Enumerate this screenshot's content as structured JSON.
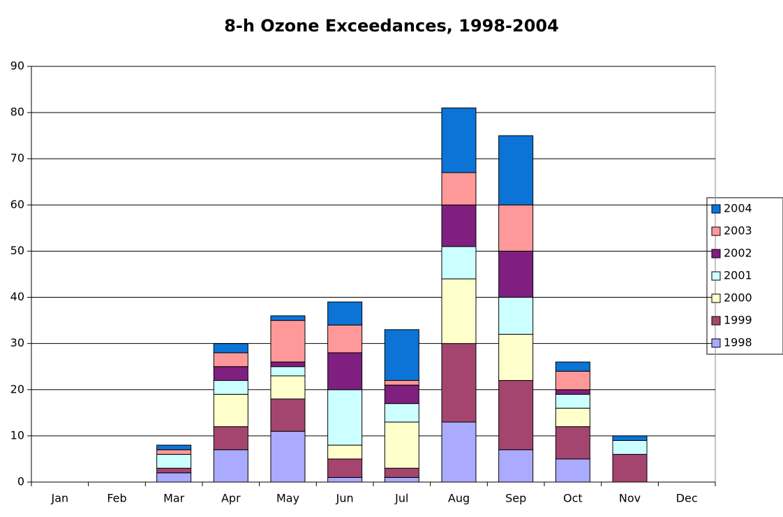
{
  "chart_data": {
    "type": "stacked_bar",
    "title": "8-h Ozone Exceedances, 1998-2004",
    "categories": [
      "Jan",
      "Feb",
      "Mar",
      "Apr",
      "May",
      "Jun",
      "Jul",
      "Aug",
      "Sep",
      "Oct",
      "Nov",
      "Dec"
    ],
    "series": [
      {
        "name": "1998",
        "color": "#aaaaff",
        "values": [
          0,
          0,
          2,
          7,
          11,
          1,
          1,
          13,
          7,
          5,
          0,
          0
        ]
      },
      {
        "name": "1999",
        "color": "#a4456f",
        "values": [
          0,
          0,
          1,
          5,
          7,
          4,
          2,
          17,
          15,
          7,
          6,
          0
        ]
      },
      {
        "name": "2000",
        "color": "#ffffcc",
        "values": [
          0,
          0,
          0,
          7,
          5,
          3,
          10,
          14,
          10,
          4,
          0,
          0
        ]
      },
      {
        "name": "2001",
        "color": "#ccffff",
        "values": [
          0,
          0,
          3,
          3,
          2,
          12,
          4,
          7,
          8,
          3,
          3,
          0
        ]
      },
      {
        "name": "2002",
        "color": "#7f1f7f",
        "values": [
          0,
          0,
          0,
          3,
          1,
          8,
          4,
          9,
          10,
          1,
          0,
          0
        ]
      },
      {
        "name": "2003",
        "color": "#ff9999",
        "values": [
          0,
          0,
          1,
          3,
          9,
          6,
          1,
          7,
          10,
          4,
          0,
          0
        ]
      },
      {
        "name": "2004",
        "color": "#0b74d6",
        "values": [
          0,
          0,
          1,
          2,
          1,
          5,
          11,
          14,
          15,
          2,
          1,
          0
        ]
      }
    ],
    "ylim": [
      0,
      90
    ],
    "yticks": [
      0,
      10,
      20,
      30,
      40,
      50,
      60,
      70,
      80,
      90
    ],
    "grid": true,
    "legend": "right"
  }
}
